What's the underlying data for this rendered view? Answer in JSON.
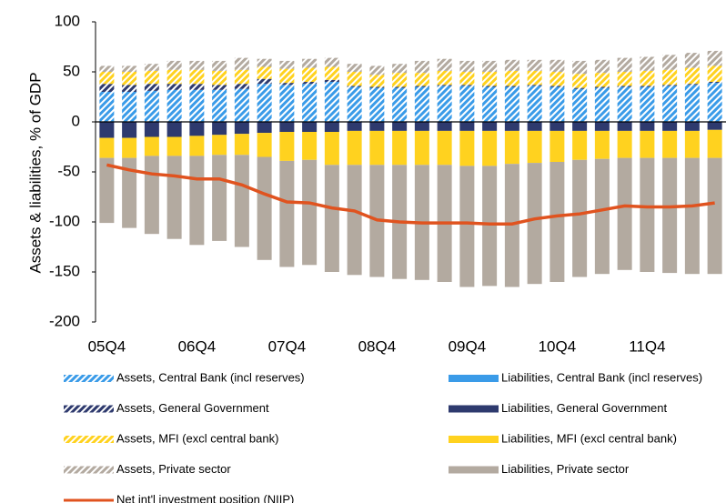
{
  "chart_data": {
    "type": "bar",
    "y_label": "Assets & liabilities, % of GDP",
    "categories": [
      "05Q4",
      null,
      null,
      null,
      "06Q4",
      null,
      null,
      null,
      "07Q4",
      null,
      null,
      null,
      "08Q4",
      null,
      null,
      null,
      "09Q4",
      null,
      null,
      null,
      "10Q4",
      null,
      null,
      null,
      "11Q4",
      null,
      null,
      null
    ],
    "ylim": [
      -200,
      100
    ],
    "yticks": [
      100,
      50,
      0,
      -50,
      -100,
      -150,
      -200
    ],
    "grid": false,
    "series": [
      {
        "name": "Assets, Central Bank (incl reserves)",
        "color": "#3a9be8",
        "style": "hatched",
        "values": [
          30,
          30,
          31,
          32,
          32,
          32,
          33,
          38,
          37,
          38,
          40,
          35,
          34,
          34,
          35,
          36,
          36,
          35,
          35,
          36,
          35,
          33,
          34,
          35,
          35,
          36,
          37,
          39
        ]
      },
      {
        "name": "Liabilities, Central Bank (incl reserves)",
        "color": "#3a9be8",
        "style": "solid",
        "values": [
          0,
          0,
          0,
          0,
          0,
          0,
          0,
          0,
          0,
          0,
          0,
          0,
          0,
          0,
          0,
          0,
          0,
          0,
          0,
          0,
          0,
          0,
          0,
          0,
          0,
          0,
          0,
          0
        ]
      },
      {
        "name": "Assets, General Government",
        "color": "#2e3a6e",
        "style": "hatched",
        "values": [
          8,
          7,
          7,
          6,
          6,
          5,
          5,
          5,
          2,
          2,
          2,
          1,
          1,
          1,
          1,
          1,
          1,
          1,
          1,
          1,
          1,
          1,
          1,
          1,
          1,
          1,
          1,
          1
        ]
      },
      {
        "name": "Liabilities, General Government",
        "color": "#2e3a6e",
        "style": "solid",
        "values": [
          -16,
          -16,
          -15,
          -15,
          -14,
          -13,
          -12,
          -11,
          -10,
          -10,
          -10,
          -9,
          -9,
          -9,
          -9,
          -9,
          -9,
          -9,
          -9,
          -9,
          -9,
          -9,
          -9,
          -9,
          -9,
          -9,
          -9,
          -8
        ]
      },
      {
        "name": "Assets, MFI (excl central bank)",
        "color": "#ffd21f",
        "style": "hatched",
        "values": [
          12,
          13,
          13,
          14,
          14,
          14,
          14,
          12,
          14,
          14,
          13,
          14,
          12,
          14,
          13,
          14,
          13,
          14,
          15,
          14,
          14,
          14,
          14,
          14,
          15,
          15,
          16,
          16
        ]
      },
      {
        "name": "Liabilities, MFI (excl central bank)",
        "color": "#ffd21f",
        "style": "solid",
        "values": [
          -20,
          -20,
          -19,
          -19,
          -20,
          -20,
          -21,
          -24,
          -29,
          -28,
          -33,
          -34,
          -34,
          -34,
          -34,
          -34,
          -35,
          -35,
          -33,
          -32,
          -31,
          -29,
          -28,
          -27,
          -27,
          -27,
          -27,
          -28
        ]
      },
      {
        "name": "Assets, Private sector",
        "color": "#b3aaa0",
        "style": "hatched",
        "values": [
          6,
          6,
          7,
          9,
          9,
          10,
          12,
          8,
          8,
          9,
          9,
          8,
          9,
          9,
          12,
          12,
          11,
          11,
          11,
          11,
          12,
          13,
          13,
          14,
          14,
          15,
          15,
          15
        ]
      },
      {
        "name": "Liabilities, Private sector",
        "color": "#b3aaa0",
        "style": "solid",
        "values": [
          -65,
          -70,
          -78,
          -83,
          -89,
          -86,
          -92,
          -103,
          -106,
          -105,
          -107,
          -110,
          -112,
          -114,
          -115,
          -117,
          -121,
          -120,
          -123,
          -121,
          -120,
          -117,
          -115,
          -112,
          -114,
          -115,
          -116,
          -116
        ]
      },
      {
        "name": "Net int'l investment position (NIIP)",
        "color": "#e0531f",
        "style": "line",
        "values": [
          -43,
          -48,
          -52,
          -54,
          -57,
          -57,
          -63,
          -72,
          -80,
          -81,
          -86,
          -89,
          -98,
          -100,
          -101,
          -101,
          -101,
          -102,
          -102,
          -97,
          -94,
          -92,
          -88,
          -84,
          -85,
          -85,
          -84,
          -81
        ]
      }
    ]
  }
}
